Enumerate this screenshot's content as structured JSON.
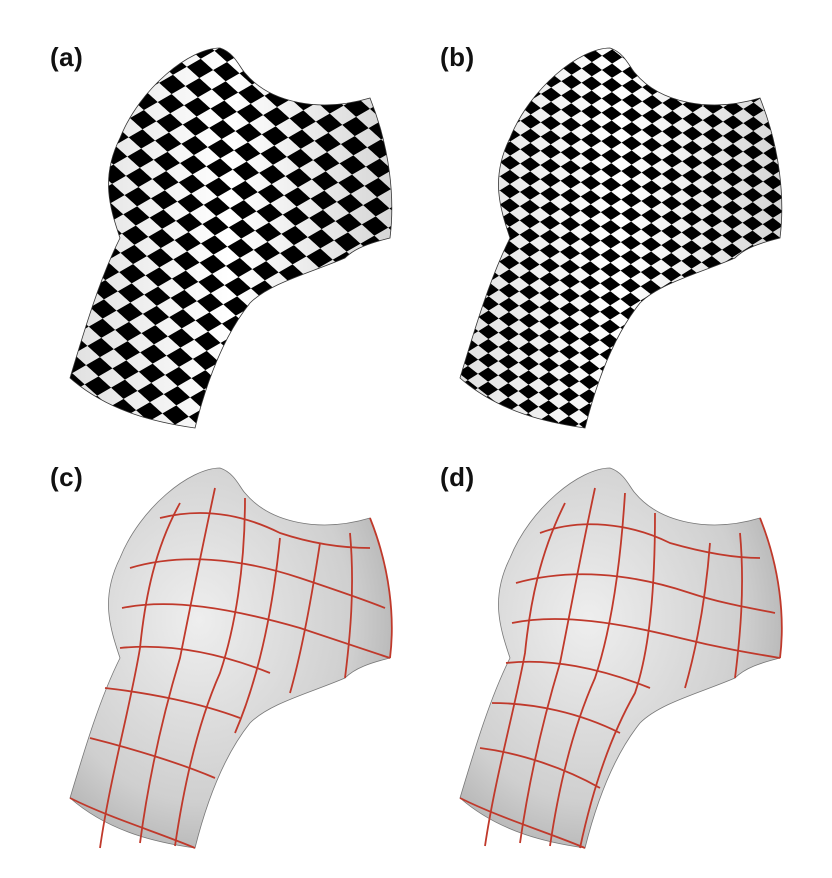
{
  "panels": [
    {
      "id": "a",
      "label": "(a)",
      "style": "checkerboard",
      "checker_density": "coarse"
    },
    {
      "id": "b",
      "label": "(b)",
      "style": "checkerboard",
      "checker_density": "fine"
    },
    {
      "id": "c",
      "label": "(c)",
      "style": "curve-network",
      "curve_color": "#c0392b"
    },
    {
      "id": "d",
      "label": "(d)",
      "style": "curve-network",
      "curve_color": "#c0392b"
    }
  ],
  "colors": {
    "checker_dark": "#000000",
    "checker_light": "#ffffff",
    "surface_gray": "#cfcfcf",
    "curve_red": "#c0392b"
  }
}
